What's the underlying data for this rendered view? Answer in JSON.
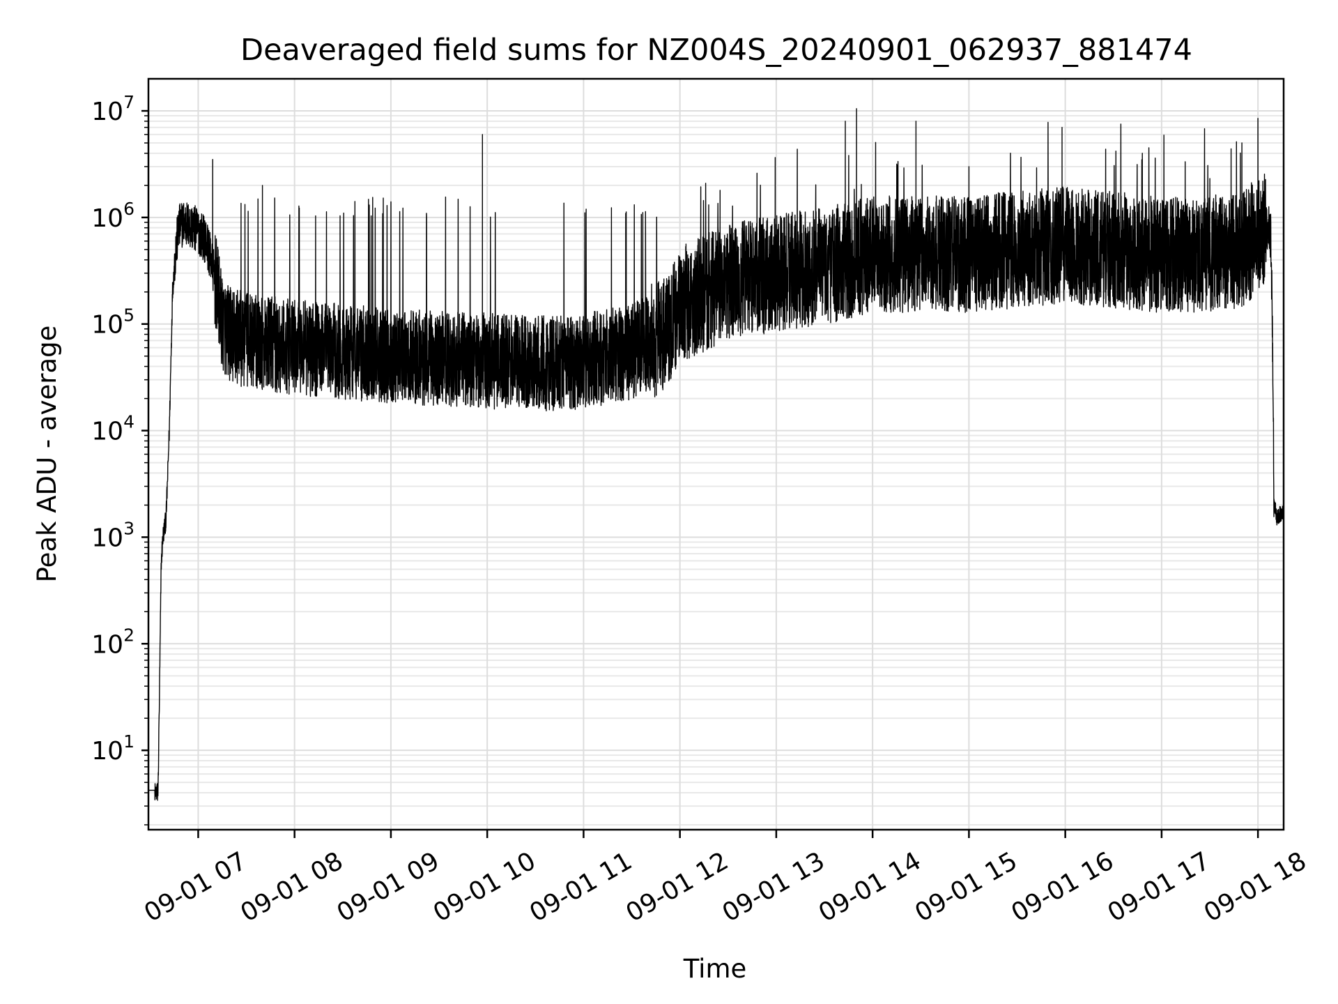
{
  "chart_data": {
    "type": "line",
    "title": "Deaveraged field sums for NZ004S_20240901_062937_881474",
    "xlabel": "Time",
    "ylabel": "Peak ADU - average",
    "y_scale": "log",
    "xlim": [
      "2024-09-01 06:29",
      "2024-09-01 18:16"
    ],
    "ylim": [
      1.8,
      20000000
    ],
    "grid": "on (major and minor, light gray)",
    "legend": "none",
    "line_color": "#000000",
    "x_ticks": [
      {
        "value": "2024-09-01 07:00",
        "label": "09-01 07"
      },
      {
        "value": "2024-09-01 08:00",
        "label": "09-01 08"
      },
      {
        "value": "2024-09-01 09:00",
        "label": "09-01 09"
      },
      {
        "value": "2024-09-01 10:00",
        "label": "09-01 10"
      },
      {
        "value": "2024-09-01 11:00",
        "label": "09-01 11"
      },
      {
        "value": "2024-09-01 12:00",
        "label": "09-01 12"
      },
      {
        "value": "2024-09-01 13:00",
        "label": "09-01 13"
      },
      {
        "value": "2024-09-01 14:00",
        "label": "09-01 14"
      },
      {
        "value": "2024-09-01 15:00",
        "label": "09-01 15"
      },
      {
        "value": "2024-09-01 16:00",
        "label": "09-01 16"
      },
      {
        "value": "2024-09-01 17:00",
        "label": "09-01 17"
      },
      {
        "value": "2024-09-01 18:00",
        "label": "09-01 18"
      }
    ],
    "y_ticks": [
      {
        "value": 10,
        "base": "10",
        "exp": "1"
      },
      {
        "value": 100,
        "base": "10",
        "exp": "2"
      },
      {
        "value": 1000,
        "base": "10",
        "exp": "3"
      },
      {
        "value": 10000,
        "base": "10",
        "exp": "4"
      },
      {
        "value": 100000,
        "base": "10",
        "exp": "5"
      },
      {
        "value": 1000000,
        "base": "10",
        "exp": "6"
      },
      {
        "value": 10000000,
        "base": "10",
        "exp": "7"
      }
    ],
    "series": [
      {
        "x": [
          "2024-09-01 06:29",
          "2024-09-01 06:35",
          "2024-09-01 06:37",
          "2024-09-01 06:38",
          "2024-09-01 06:40",
          "2024-09-01 06:42",
          "2024-09-01 06:44",
          "2024-09-01 06:46",
          "2024-09-01 06:48",
          "2024-09-01 06:51",
          "2024-09-01 06:54",
          "2024-09-01 06:57",
          "2024-09-01 07:00",
          "2024-09-01 07:05",
          "2024-09-01 07:08",
          "2024-09-01 07:12",
          "2024-09-01 07:15",
          "2024-09-01 07:20",
          "2024-09-01 07:30",
          "2024-09-01 07:45",
          "2024-09-01 08:00",
          "2024-09-01 08:30",
          "2024-09-01 09:00",
          "2024-09-01 09:30",
          "2024-09-01 10:00",
          "2024-09-01 10:30",
          "2024-09-01 11:00",
          "2024-09-01 11:30",
          "2024-09-01 11:50",
          "2024-09-01 12:00",
          "2024-09-01 12:30",
          "2024-09-01 13:00",
          "2024-09-01 13:30",
          "2024-09-01 14:00",
          "2024-09-01 14:30",
          "2024-09-01 15:00",
          "2024-09-01 15:30",
          "2024-09-01 16:00",
          "2024-09-01 16:30",
          "2024-09-01 17:00",
          "2024-09-01 17:30",
          "2024-09-01 17:50",
          "2024-09-01 18:05",
          "2024-09-01 18:08",
          "2024-09-01 18:09",
          "2024-09-01 18:10",
          "2024-09-01 18:12",
          "2024-09-01 18:16"
        ],
        "y": [
          4,
          4,
          600,
          1000,
          1500,
          10000,
          200000,
          500000,
          800000,
          900000,
          850000,
          800000,
          750000,
          600000,
          400000,
          200000,
          100000,
          80000,
          70000,
          65000,
          60000,
          55000,
          50000,
          48000,
          45000,
          42000,
          45000,
          55000,
          80000,
          150000,
          250000,
          300000,
          350000,
          450000,
          450000,
          450000,
          500000,
          550000,
          500000,
          450000,
          450000,
          500000,
          800000,
          700000,
          100000,
          2000,
          1500,
          1800
        ],
        "peaks": [
          {
            "x": "2024-09-01 07:09",
            "y": 3500000
          },
          {
            "x": "2024-09-01 07:40",
            "y": 2000000
          },
          {
            "x": "2024-09-01 09:57",
            "y": 6000000
          },
          {
            "x": "2024-09-01 12:25",
            "y": 1800000
          },
          {
            "x": "2024-09-01 12:48",
            "y": 2600000
          },
          {
            "x": "2024-09-01 13:43",
            "y": 8000000
          },
          {
            "x": "2024-09-01 13:50",
            "y": 10500000
          },
          {
            "x": "2024-09-01 14:27",
            "y": 8000000
          },
          {
            "x": "2024-09-01 15:00",
            "y": 3000000
          },
          {
            "x": "2024-09-01 15:58",
            "y": 7000000
          },
          {
            "x": "2024-09-01 16:48",
            "y": 4000000
          },
          {
            "x": "2024-09-01 17:50",
            "y": 5000000
          },
          {
            "x": "2024-09-01 18:00",
            "y": 8500000
          }
        ]
      }
    ]
  }
}
